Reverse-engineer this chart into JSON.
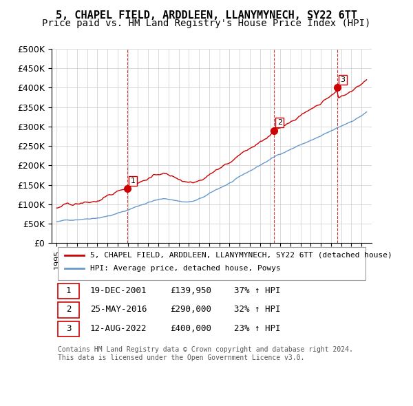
{
  "title": "5, CHAPEL FIELD, ARDDLEEN, LLANYMYNECH, SY22 6TT",
  "subtitle": "Price paid vs. HM Land Registry's House Price Index (HPI)",
  "ylabel_values": [
    "£0",
    "£50K",
    "£100K",
    "£150K",
    "£200K",
    "£250K",
    "£300K",
    "£350K",
    "£400K",
    "£450K",
    "£500K"
  ],
  "ylim": [
    0,
    500000
  ],
  "yticks": [
    0,
    50000,
    100000,
    150000,
    200000,
    250000,
    300000,
    350000,
    400000,
    450000,
    500000
  ],
  "red_line_color": "#cc0000",
  "blue_line_color": "#6699cc",
  "marker_color": "#cc0000",
  "vline_color": "#cc0000",
  "sale_points": [
    {
      "date_num": 2001.97,
      "price": 139950,
      "label": "1"
    },
    {
      "date_num": 2016.4,
      "price": 290000,
      "label": "2"
    },
    {
      "date_num": 2022.62,
      "price": 400000,
      "label": "3"
    }
  ],
  "legend_entries": [
    "5, CHAPEL FIELD, ARDDLEEN, LLANYMYNECH, SY22 6TT (detached house)",
    "HPI: Average price, detached house, Powys"
  ],
  "table_rows": [
    {
      "num": "1",
      "date": "19-DEC-2001",
      "price": "£139,950",
      "pct": "37% ↑ HPI"
    },
    {
      "num": "2",
      "date": "25-MAY-2016",
      "price": "£290,000",
      "pct": "32% ↑ HPI"
    },
    {
      "num": "3",
      "date": "12-AUG-2022",
      "price": "£400,000",
      "pct": "23% ↑ HPI"
    }
  ],
  "footnote1": "Contains HM Land Registry data © Crown copyright and database right 2024.",
  "footnote2": "This data is licensed under the Open Government Licence v3.0.",
  "background_color": "#ffffff",
  "grid_color": "#cccccc",
  "title_fontsize": 11,
  "subtitle_fontsize": 10,
  "axis_fontsize": 9
}
